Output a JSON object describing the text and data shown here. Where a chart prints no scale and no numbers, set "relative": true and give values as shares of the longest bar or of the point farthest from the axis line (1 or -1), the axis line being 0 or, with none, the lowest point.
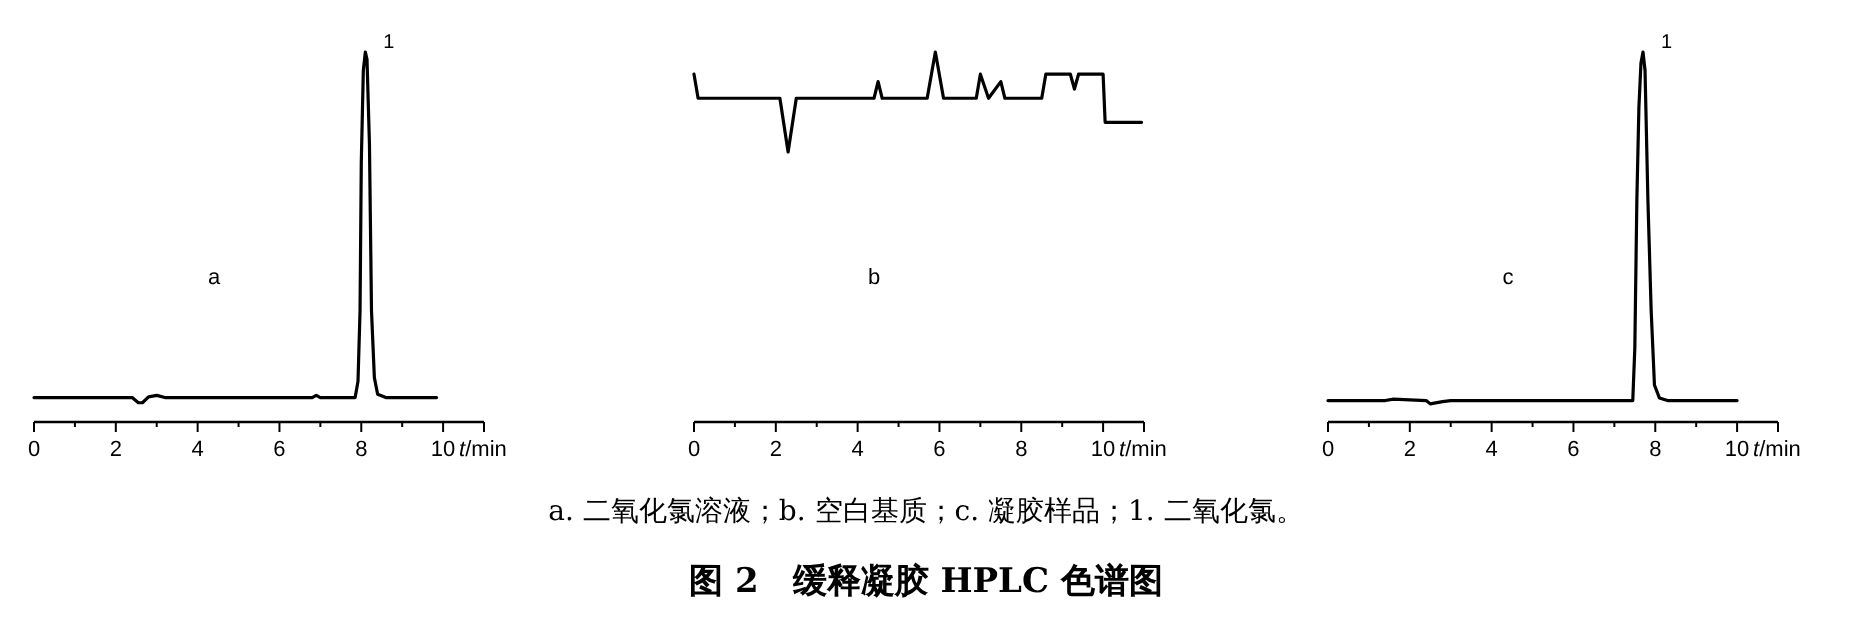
{
  "chart_data": [
    {
      "type": "line",
      "relative": true,
      "color": "#000000",
      "xlim": [
        0,
        11
      ],
      "xticks": [
        0,
        {
          "value": 1,
          "label": null
        },
        2,
        {
          "value": 3,
          "label": null
        },
        4,
        {
          "value": 5,
          "label": null
        },
        6,
        {
          "value": 7,
          "label": null
        },
        8,
        {
          "value": 9,
          "label": null
        },
        10
      ],
      "xlabel": "*t*/min",
      "annotations": [
        "a",
        {
          "text": "1",
          "x": 8.1,
          "y": 1.0
        }
      ],
      "x": [
        0,
        2.4,
        2.55,
        2.65,
        2.8,
        3.0,
        3.2,
        6.8,
        6.9,
        7.0,
        7.85,
        7.92,
        7.97,
        8.0,
        8.05,
        8.1,
        8.14,
        8.2,
        8.25,
        8.32,
        8.4,
        8.6,
        9.84
      ],
      "values": [
        0.066,
        0.066,
        0.052,
        0.052,
        0.068,
        0.072,
        0.066,
        0.066,
        0.072,
        0.066,
        0.066,
        0.11,
        0.3,
        0.7,
        0.95,
        1.0,
        0.98,
        0.75,
        0.3,
        0.12,
        0.075,
        0.066,
        0.066
      ]
    },
    {
      "type": "line",
      "relative": true,
      "color": "#000000",
      "xlim": [
        0,
        11
      ],
      "xticks": [
        0,
        {
          "value": 1,
          "label": null
        },
        2,
        {
          "value": 3,
          "label": null
        },
        4,
        {
          "value": 5,
          "label": null
        },
        6,
        {
          "value": 7,
          "label": null
        },
        8,
        {
          "value": 9,
          "label": null
        },
        10
      ],
      "xlabel": "*t*/min",
      "title": "图 2　缓释凝胶 HPLC 色谱图",
      "annotations": [
        "b",
        "a.  二氧化氯溶液；b.  空白基质；c.  凝胶样品；1.  二氧化氯。"
      ],
      "x": [
        0,
        0.1,
        2.1,
        2.3,
        2.5,
        4.4,
        4.5,
        4.6,
        5.7,
        5.9,
        6.1,
        6.9,
        7.0,
        7.2,
        7.5,
        7.6,
        8.5,
        8.6,
        9.2,
        9.3,
        9.4,
        10.0,
        10.05,
        10.94
      ],
      "values": [
        0.94,
        0.875,
        0.875,
        0.73,
        0.875,
        0.875,
        0.92,
        0.875,
        0.875,
        1.0,
        0.875,
        0.875,
        0.94,
        0.875,
        0.92,
        0.875,
        0.875,
        0.94,
        0.94,
        0.9,
        0.94,
        0.94,
        0.81,
        0.81
      ]
    },
    {
      "type": "line",
      "relative": true,
      "color": "#000000",
      "xlim": [
        0,
        11
      ],
      "xticks": [
        0,
        {
          "value": 1,
          "label": null
        },
        2,
        {
          "value": 3,
          "label": null
        },
        4,
        {
          "value": 5,
          "label": null
        },
        6,
        {
          "value": 7,
          "label": null
        },
        8,
        {
          "value": 9,
          "label": null
        },
        10
      ],
      "xlabel": "*t*/min",
      "annotations": [
        "c",
        {
          "text": "1",
          "x": 7.7,
          "y": 1.0
        }
      ],
      "x": [
        0,
        1.4,
        1.6,
        2.4,
        2.5,
        2.8,
        3.0,
        7.45,
        7.5,
        7.55,
        7.6,
        7.65,
        7.7,
        7.75,
        7.82,
        7.9,
        7.98,
        8.1,
        8.3,
        10.0
      ],
      "values": [
        0.058,
        0.058,
        0.062,
        0.058,
        0.049,
        0.055,
        0.058,
        0.058,
        0.2,
        0.6,
        0.85,
        0.97,
        1.0,
        0.95,
        0.6,
        0.3,
        0.1,
        0.065,
        0.058,
        0.058
      ]
    }
  ]
}
